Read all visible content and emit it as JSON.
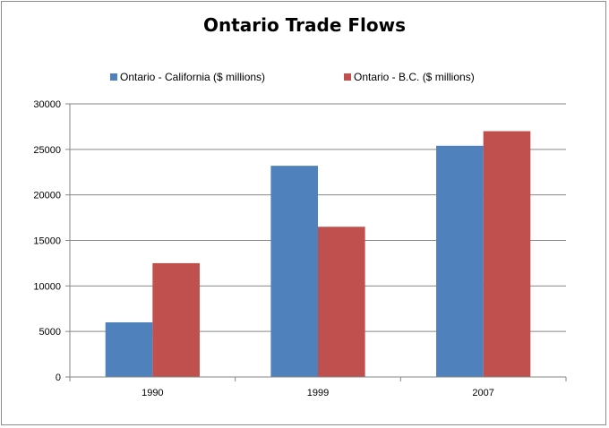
{
  "chart_data": {
    "type": "bar",
    "title": "Ontario Trade Flows",
    "xlabel": "",
    "ylabel": "",
    "categories": [
      "1990",
      "1999",
      "2007"
    ],
    "series": [
      {
        "name": "Ontario - California ($ millions)",
        "color": "#4f81bd",
        "values": [
          6000,
          23200,
          25400
        ]
      },
      {
        "name": "Ontario - B.C. ($ millions)",
        "color": "#c0504d",
        "values": [
          12500,
          16500,
          27000
        ]
      }
    ],
    "ylim": [
      0,
      30000
    ],
    "yticks": [
      "0",
      "5000",
      "10000",
      "15000",
      "20000",
      "25000",
      "30000"
    ],
    "grid": true,
    "legend_position": "top"
  }
}
